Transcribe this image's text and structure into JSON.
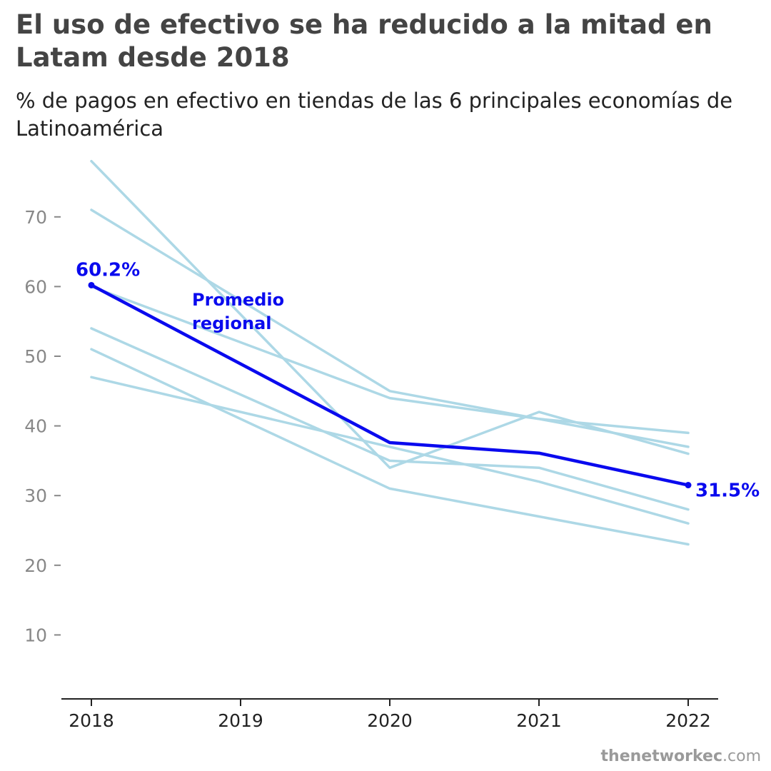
{
  "header": {
    "title": "El uso de efectivo se ha reducido a la mitad en Latam desde 2018",
    "subtitle": "% de pagos en efectivo en tiendas de las 6 principales economías de Latinoamérica"
  },
  "source": {
    "brand": "thenetworkec",
    "suffix": ".com"
  },
  "colors": {
    "country_line": "#add8e6",
    "average_line": "#0a0aee",
    "tick_label": "#888888",
    "x_tick_label": "#222222",
    "axis": "#222222"
  },
  "chart_data": {
    "type": "line",
    "x": [
      "2018",
      "2019",
      "2020",
      "2021",
      "2022"
    ],
    "ylim": [
      0,
      80
    ],
    "yticks": [
      10,
      20,
      30,
      40,
      50,
      60,
      70
    ],
    "xlabel": "",
    "ylabel": "",
    "grid": false,
    "series": [
      {
        "name": "",
        "role": "country",
        "values": [
          78,
          null,
          34,
          42,
          36
        ]
      },
      {
        "name": "",
        "role": "country",
        "values": [
          71,
          null,
          45,
          41,
          37
        ]
      },
      {
        "name": "",
        "role": "country",
        "values": [
          60,
          null,
          44,
          41,
          39
        ]
      },
      {
        "name": "",
        "role": "country",
        "values": [
          54,
          null,
          35,
          34,
          28
        ]
      },
      {
        "name": "",
        "role": "country",
        "values": [
          51,
          null,
          31,
          27,
          23
        ]
      },
      {
        "name": "",
        "role": "country",
        "values": [
          47,
          null,
          37,
          32,
          26
        ]
      },
      {
        "name": "Promedio regional",
        "role": "average",
        "values": [
          60.2,
          null,
          37.6,
          36.1,
          31.5
        ]
      }
    ],
    "annotations": {
      "series_label": "Promedio regional",
      "start_label": "60.2%",
      "end_label": "31.5%"
    }
  }
}
